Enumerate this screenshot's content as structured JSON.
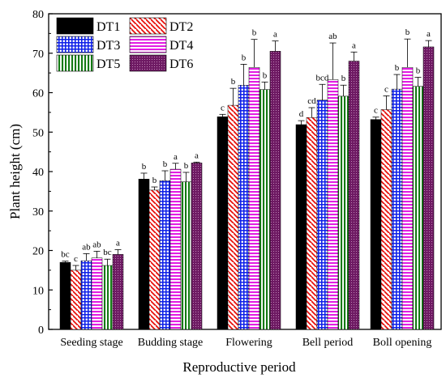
{
  "chart_data": {
    "type": "bar",
    "xlabel": "Reproductive period",
    "ylabel": "Plant height (cm)",
    "ylim": [
      0,
      80
    ],
    "yticks": [
      0,
      10,
      20,
      30,
      40,
      50,
      60,
      70,
      80
    ],
    "grid": false,
    "legend_position": "top-left",
    "categories": [
      "Seeding stage",
      "Budding stage",
      "Flowering",
      "Bell period",
      "Boll opening"
    ],
    "series": [
      {
        "name": "DT1",
        "color": "#000000",
        "pattern": "solid",
        "values": [
          17.0,
          38.1,
          53.9,
          51.9,
          53.2
        ],
        "errors": [
          0.3,
          1.5,
          0.6,
          1.0,
          0.6
        ],
        "letters": [
          "bc",
          "b",
          "c",
          "d",
          "c"
        ]
      },
      {
        "name": "DT2",
        "color": "#e8100c",
        "pattern": "back-diagonal",
        "values": [
          15.0,
          35.3,
          56.8,
          53.7,
          55.7
        ],
        "errors": [
          1.2,
          0.8,
          4.3,
          2.5,
          3.5
        ],
        "letters": [
          "c",
          "b",
          "b",
          "cd",
          "c"
        ]
      },
      {
        "name": "DT3",
        "color": "#0d1fe8",
        "pattern": "grid",
        "values": [
          17.4,
          37.7,
          61.9,
          58.1,
          60.9
        ],
        "errors": [
          1.8,
          2.5,
          5.3,
          4.0,
          3.7
        ],
        "letters": [
          "ab",
          "b",
          "b",
          "bcd",
          "b"
        ]
      },
      {
        "name": "DT4",
        "color": "#e31ee3",
        "pattern": "horizontal",
        "values": [
          18.1,
          40.6,
          66.4,
          63.3,
          66.4
        ],
        "errors": [
          1.7,
          1.5,
          7.1,
          9.3,
          7.2
        ],
        "letters": [
          "ab",
          "a",
          "b",
          "ab",
          "b"
        ]
      },
      {
        "name": "DT5",
        "color": "#137a13",
        "pattern": "vertical",
        "values": [
          16.2,
          37.4,
          60.8,
          59.1,
          61.6
        ],
        "errors": [
          1.6,
          2.4,
          1.9,
          2.8,
          2.3
        ],
        "letters": [
          "bc",
          "b",
          "b",
          "b",
          "b"
        ]
      },
      {
        "name": "DT6",
        "color": "#6e1a63",
        "pattern": "dotted",
        "values": [
          19.0,
          42.2,
          70.5,
          68.0,
          71.6
        ],
        "errors": [
          1.2,
          0.2,
          2.6,
          2.3,
          1.6
        ],
        "letters": [
          "a",
          "a",
          "a",
          "a",
          "a"
        ]
      }
    ]
  }
}
